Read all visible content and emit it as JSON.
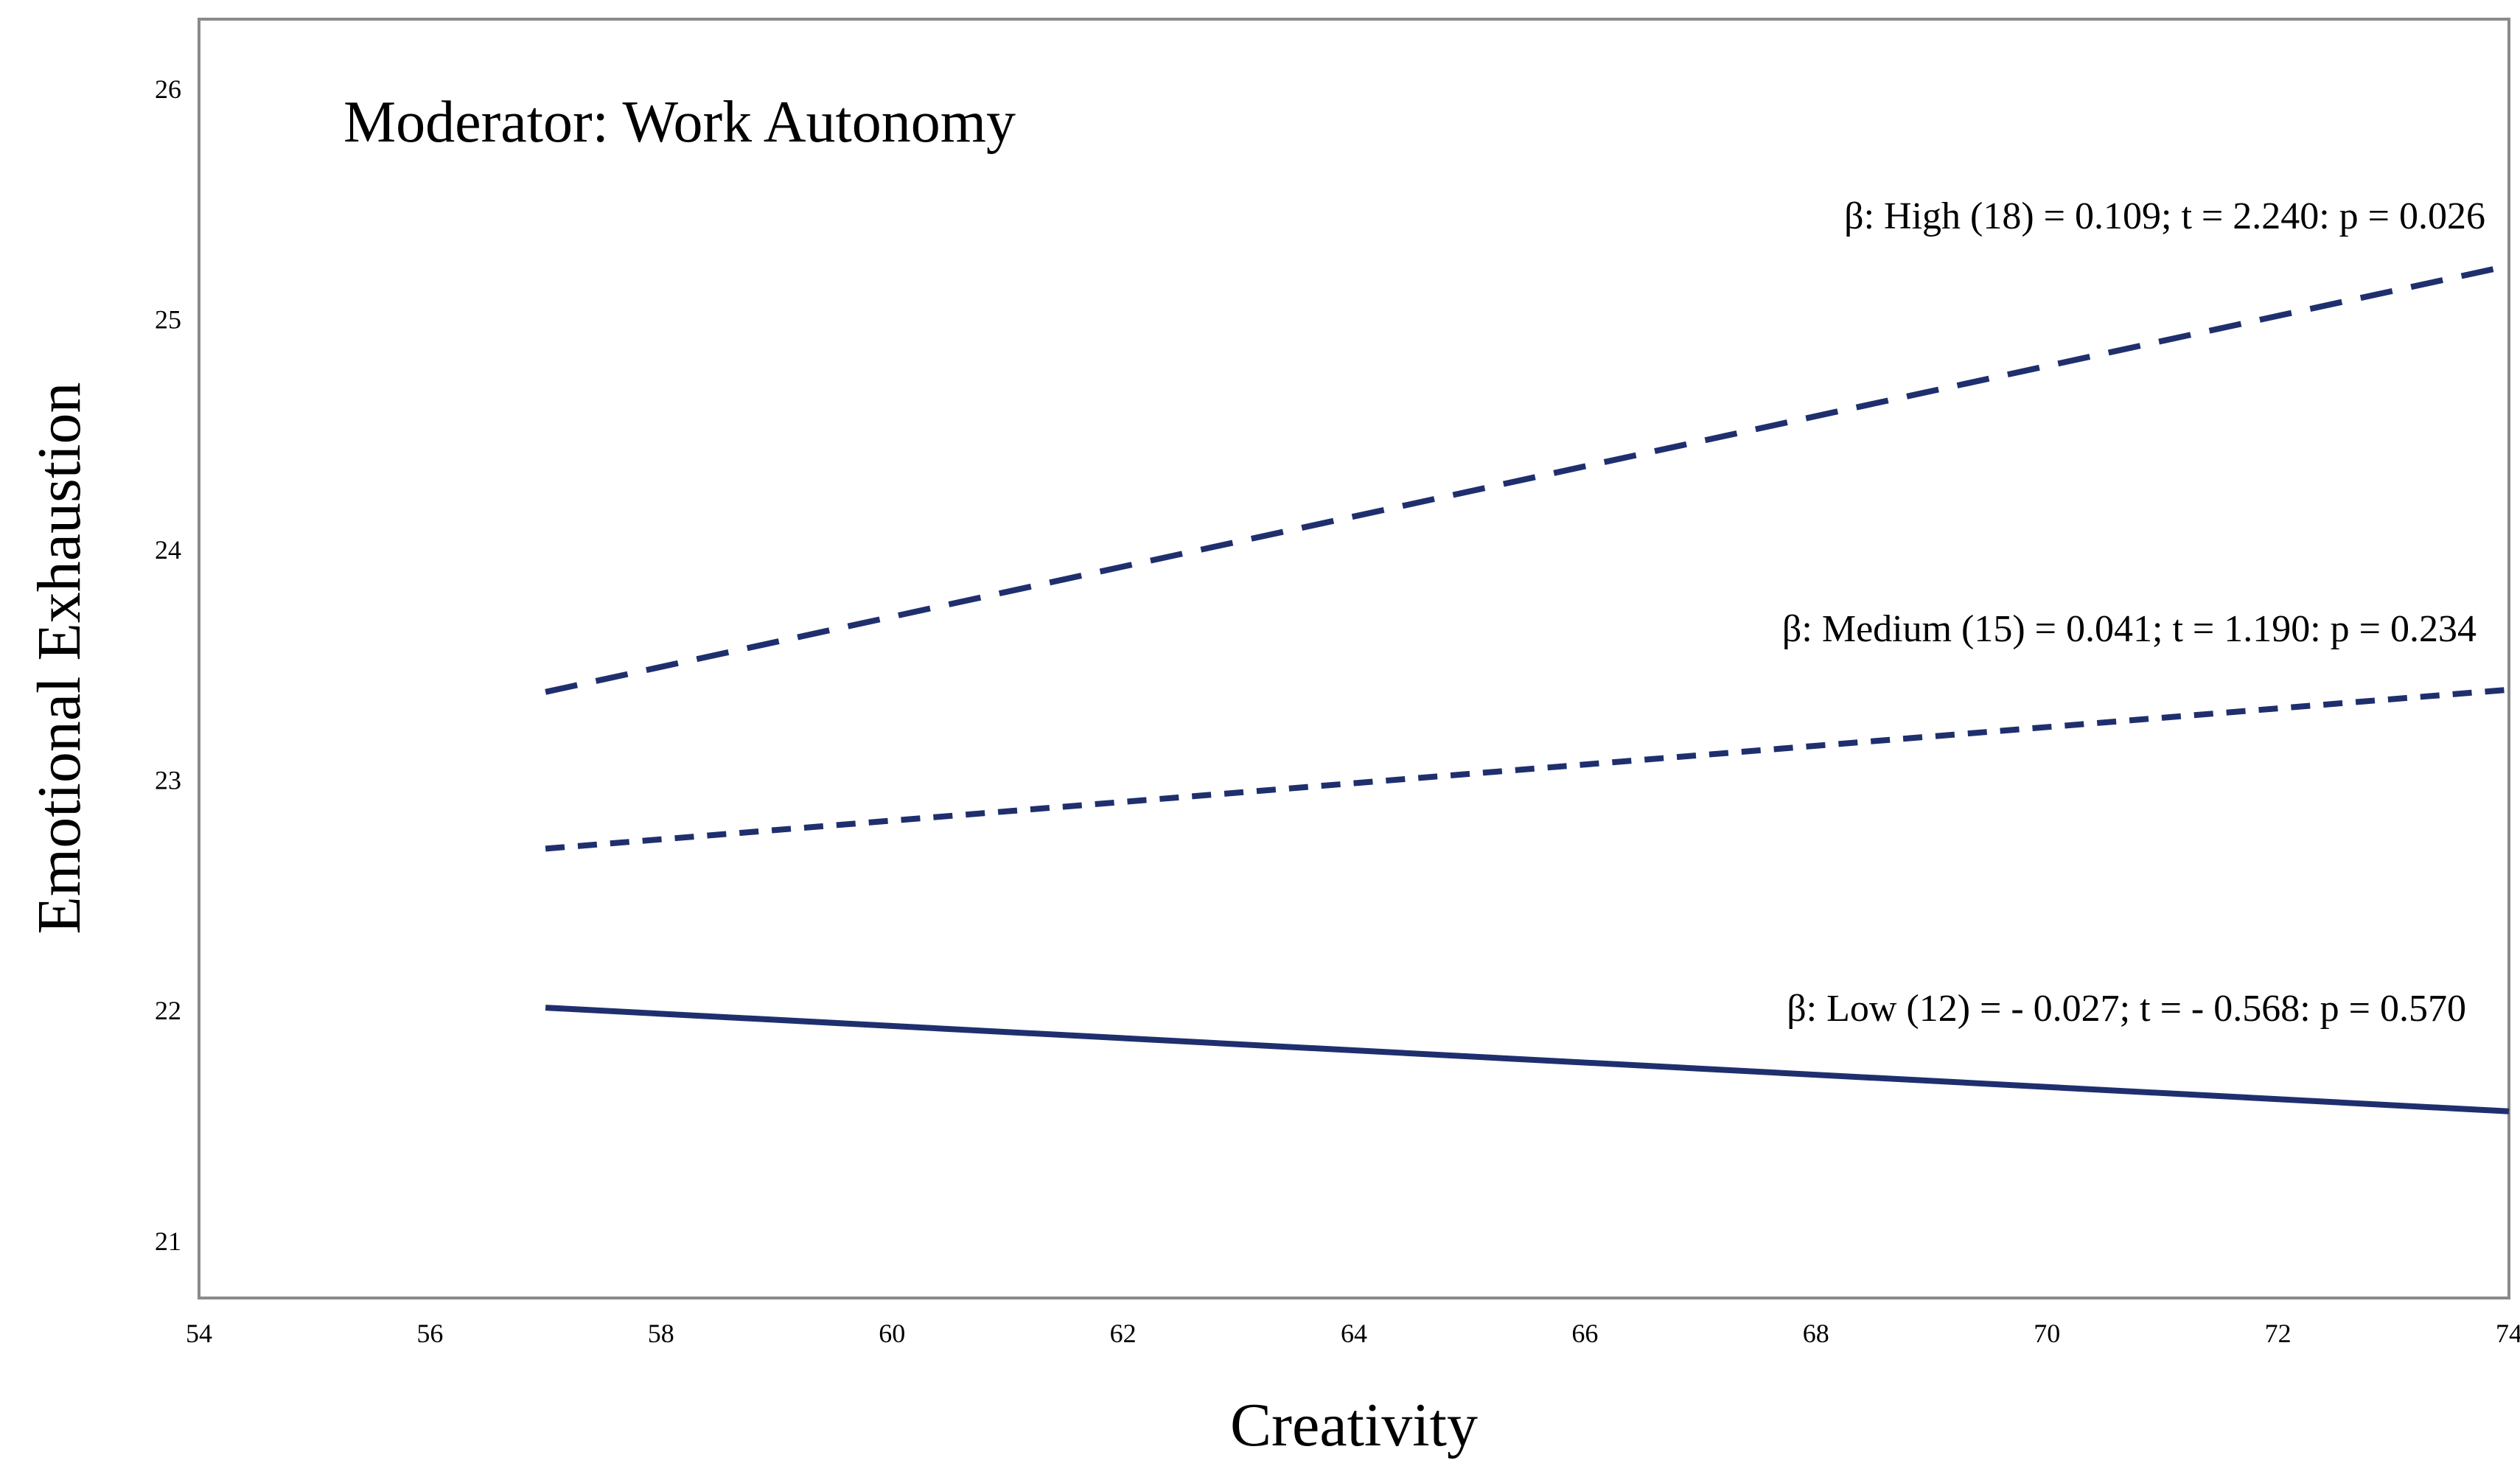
{
  "chart_data": {
    "type": "line",
    "title": "Moderator: Work Autonomy",
    "xlabel": "Creativity",
    "ylabel": "Emotional Exhaustion",
    "xlim": [
      54,
      74
    ],
    "ylim": [
      20.75,
      26.3
    ],
    "x_ticks": [
      "54",
      "56",
      "58",
      "60",
      "62",
      "64",
      "66",
      "68",
      "70",
      "72",
      "74"
    ],
    "y_ticks": [
      "21",
      "22",
      "23",
      "24",
      "25",
      "26"
    ],
    "grid": false,
    "line_color": "#1f2f6e",
    "series": [
      {
        "key": "high",
        "style": "long-dash",
        "x": [
          57,
          74
        ],
        "y": [
          23.38,
          25.23
        ],
        "annotation": "β: High (18) = 0.109; t = 2.240: p = 0.026"
      },
      {
        "key": "medium",
        "style": "short-dash",
        "x": [
          57,
          74
        ],
        "y": [
          22.7,
          23.39
        ],
        "annotation": "β: Medium (15) = 0.041; t = 1.190: p = 0.234"
      },
      {
        "key": "low",
        "style": "solid",
        "x": [
          57,
          74
        ],
        "y": [
          22.01,
          21.56
        ],
        "annotation": "β: Low (12) = - 0.027; t = - 0.568: p = 0.570"
      }
    ]
  }
}
